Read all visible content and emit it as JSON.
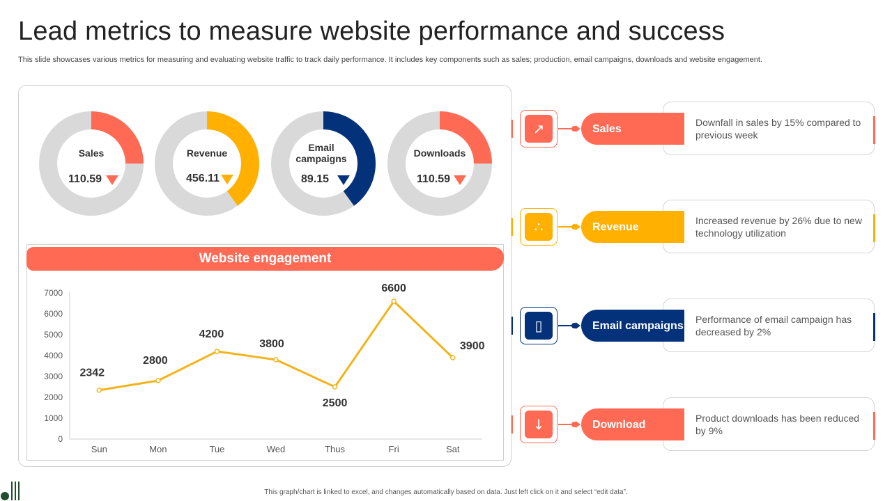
{
  "title": "Lead metrics to measure website performance and success",
  "subtitle": "This slide showcases various metrics for measuring and evaluating website traffic  to track daily performance. It includes key components such as sales; production, email campaigns, downloads and website engagement.",
  "colors": {
    "coral": "#ff6a55",
    "amber": "#ffb000",
    "navy": "#04327a",
    "track": "#d9d9d9",
    "line": "#f2b41c"
  },
  "donuts": [
    {
      "label": "Sales",
      "value": "110.59",
      "fraction": 0.25,
      "color": "#ff6a55"
    },
    {
      "label": "Revenue",
      "value": "456.11",
      "fraction": 0.4,
      "color": "#ffb000"
    },
    {
      "label": "Email campaigns",
      "value": "89.15",
      "fraction": 0.4,
      "color": "#04327a"
    },
    {
      "label": "Downloads",
      "value": "110.59",
      "fraction": 0.25,
      "color": "#ff6a55"
    }
  ],
  "engagement": {
    "header": "Website engagement"
  },
  "chart_data": {
    "type": "line",
    "title": "Website engagement",
    "categories": [
      "Sun",
      "Mon",
      "Tue",
      "Wed",
      "Thus",
      "Fri",
      "Sat"
    ],
    "values": [
      2342,
      2800,
      4200,
      3800,
      2500,
      6600,
      3900
    ],
    "data_labels": [
      "2342",
      "2800",
      "4200",
      "3800",
      "2500",
      "6600",
      "3900"
    ],
    "ylim": [
      0,
      7000
    ],
    "yticks": [
      "0",
      "1000",
      "2000",
      "3000",
      "4000",
      "5000",
      "6000",
      "7000"
    ],
    "grid": false,
    "xlabel": "",
    "ylabel": ""
  },
  "metrics": [
    {
      "name": "Sales",
      "desc": "Downfall in sales by 15% compared to previous week",
      "color": "#ff6a55",
      "icon": "sales-hand-chart-icon"
    },
    {
      "name": "Revenue",
      "desc": "Increased revenue by 26% due to new technology utilization",
      "color": "#ffb000",
      "icon": "revenue-hand-coins-icon"
    },
    {
      "name": "Email campaigns",
      "desc": "Performance of email campaign has decreased by 2%",
      "color": "#04327a",
      "icon": "mobile-email-icon"
    },
    {
      "name": "Download",
      "desc": "Product downloads has been reduced by 9%",
      "color": "#ff6a55",
      "icon": "download-icon"
    }
  ],
  "footnote": "This graph/chart is linked to excel, and changes automatically based on data. Just left click on it and select “edit data”."
}
